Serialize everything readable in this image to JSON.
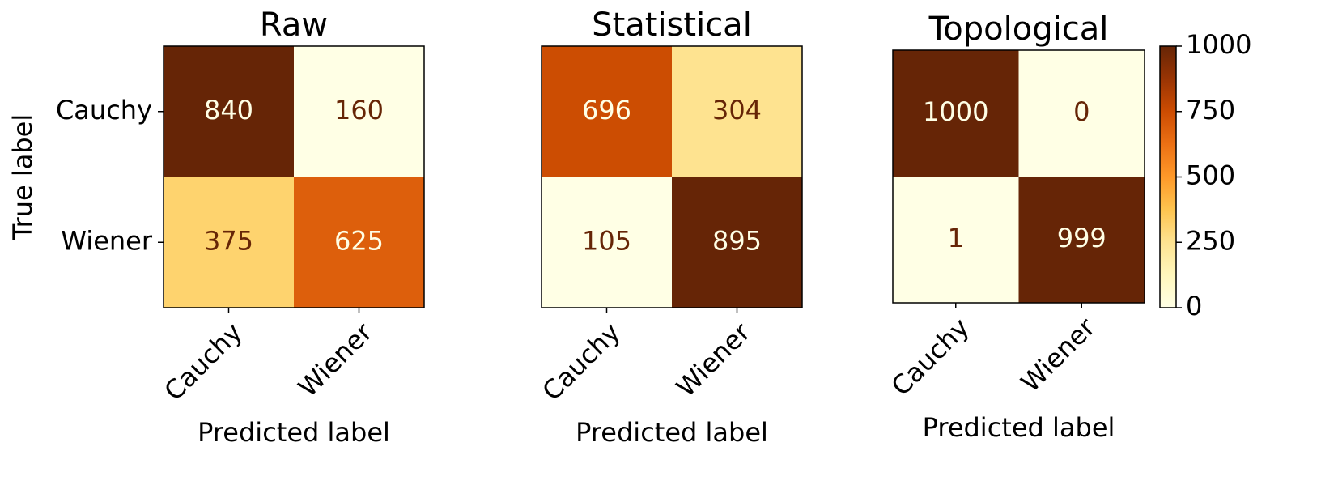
{
  "chart_data": [
    {
      "type": "heatmap",
      "title": "Raw",
      "colormap": "YlOrBr",
      "x_label": "Predicted label",
      "y_label": "True label",
      "x_categories": [
        "Cauchy",
        "Wiener"
      ],
      "y_categories": [
        "Cauchy",
        "Wiener"
      ],
      "values": [
        [
          840,
          160
        ],
        [
          375,
          625
        ]
      ]
    },
    {
      "type": "heatmap",
      "title": "Statistical",
      "colormap": "YlOrBr",
      "x_label": "Predicted label",
      "x_categories": [
        "Cauchy",
        "Wiener"
      ],
      "values": [
        [
          696,
          304
        ],
        [
          105,
          895
        ]
      ]
    },
    {
      "type": "heatmap",
      "title": "Topological",
      "colormap": "YlOrBr",
      "x_label": "Predicted label",
      "x_categories": [
        "Cauchy",
        "Wiener"
      ],
      "values": [
        [
          1000,
          0
        ],
        [
          1,
          999
        ]
      ],
      "clim": [
        0,
        1000
      ],
      "cticks": [
        0,
        250,
        500,
        750,
        1000
      ]
    }
  ]
}
